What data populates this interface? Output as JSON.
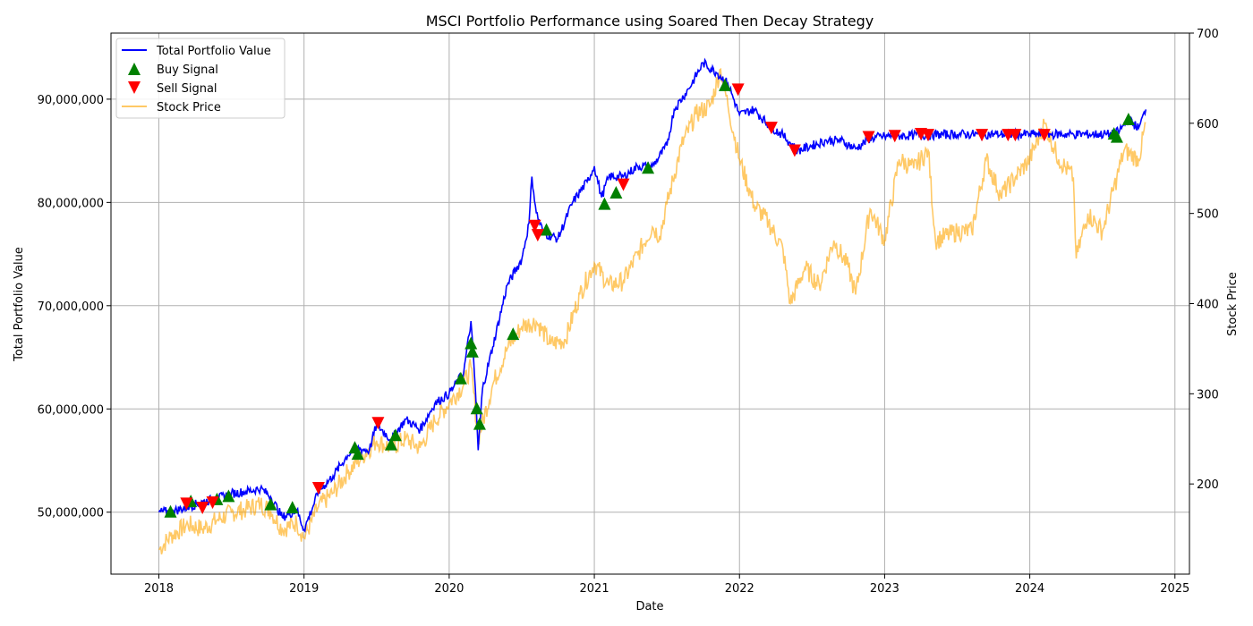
{
  "chart_data": {
    "type": "line",
    "title": "MSCI Portfolio Performance using Soared Then Decay Strategy",
    "xlabel": "Date",
    "ylabel": "Total Portfolio Value",
    "ylabel_right": "Stock Price",
    "grid": true,
    "legend_position": "top-left",
    "x_ticks": [
      "2018",
      "2019",
      "2020",
      "2021",
      "2022",
      "2023",
      "2024",
      "2025"
    ],
    "y_ticks_left": [
      "50,000,000",
      "60,000,000",
      "70,000,000",
      "80,000,000",
      "90,000,000"
    ],
    "y_ticks_right": [
      "200",
      "300",
      "400",
      "500",
      "600",
      "700"
    ],
    "xlim": [
      2017.67,
      2025.1
    ],
    "ylim_left": [
      44000000,
      96400000
    ],
    "ylim_right": [
      100,
      700
    ],
    "colors": {
      "portfolio": "#0000ff",
      "buy": "#008000",
      "sell": "#ff0000",
      "stock": "#ffa500",
      "grid": "#b0b0b0"
    },
    "series": [
      {
        "name": "Total Portfolio Value",
        "axis": "left",
        "points": [
          [
            2018.0,
            50000000
          ],
          [
            2018.1,
            50100000
          ],
          [
            2018.2,
            50500000
          ],
          [
            2018.3,
            51000000
          ],
          [
            2018.4,
            51300000
          ],
          [
            2018.5,
            51800000
          ],
          [
            2018.6,
            52000000
          ],
          [
            2018.7,
            52300000
          ],
          [
            2018.77,
            51500000
          ],
          [
            2018.85,
            49500000
          ],
          [
            2018.95,
            50200000
          ],
          [
            2019.0,
            48300000
          ],
          [
            2019.1,
            52000000
          ],
          [
            2019.2,
            53500000
          ],
          [
            2019.3,
            55500000
          ],
          [
            2019.35,
            56200000
          ],
          [
            2019.45,
            56000000
          ],
          [
            2019.5,
            58500000
          ],
          [
            2019.6,
            57000000
          ],
          [
            2019.7,
            59000000
          ],
          [
            2019.8,
            58000000
          ],
          [
            2019.9,
            60500000
          ],
          [
            2020.0,
            61500000
          ],
          [
            2020.1,
            63500000
          ],
          [
            2020.15,
            68500000
          ],
          [
            2020.18,
            62000000
          ],
          [
            2020.2,
            56000000
          ],
          [
            2020.23,
            62000000
          ],
          [
            2020.3,
            66000000
          ],
          [
            2020.4,
            72000000
          ],
          [
            2020.5,
            74500000
          ],
          [
            2020.55,
            78000000
          ],
          [
            2020.57,
            82500000
          ],
          [
            2020.6,
            79000000
          ],
          [
            2020.65,
            77000000
          ],
          [
            2020.75,
            76500000
          ],
          [
            2020.85,
            80000000
          ],
          [
            2020.95,
            82000000
          ],
          [
            2021.0,
            83500000
          ],
          [
            2021.05,
            80500000
          ],
          [
            2021.1,
            82500000
          ],
          [
            2021.2,
            82500000
          ],
          [
            2021.3,
            83500000
          ],
          [
            2021.4,
            83500000
          ],
          [
            2021.5,
            85500000
          ],
          [
            2021.55,
            89000000
          ],
          [
            2021.65,
            91000000
          ],
          [
            2021.75,
            93500000
          ],
          [
            2021.85,
            92500000
          ],
          [
            2021.92,
            91500000
          ],
          [
            2022.0,
            88500000
          ],
          [
            2022.1,
            89000000
          ],
          [
            2022.2,
            87500000
          ],
          [
            2022.3,
            86500000
          ],
          [
            2022.4,
            85000000
          ],
          [
            2022.5,
            85500000
          ],
          [
            2022.6,
            86000000
          ],
          [
            2022.7,
            86000000
          ],
          [
            2022.8,
            85200000
          ],
          [
            2022.9,
            86200000
          ],
          [
            2023.0,
            86400000
          ],
          [
            2023.2,
            86500000
          ],
          [
            2023.5,
            86600000
          ],
          [
            2023.8,
            86600000
          ],
          [
            2024.0,
            86600000
          ],
          [
            2024.3,
            86600000
          ],
          [
            2024.58,
            86600000
          ],
          [
            2024.62,
            87000000
          ],
          [
            2024.68,
            88000000
          ],
          [
            2024.75,
            87200000
          ],
          [
            2024.8,
            89000000
          ]
        ]
      },
      {
        "name": "Stock Price",
        "axis": "right",
        "points": [
          [
            2018.0,
            127
          ],
          [
            2018.08,
            142
          ],
          [
            2018.2,
            155
          ],
          [
            2018.3,
            150
          ],
          [
            2018.4,
            160
          ],
          [
            2018.5,
            168
          ],
          [
            2018.6,
            172
          ],
          [
            2018.7,
            178
          ],
          [
            2018.77,
            170
          ],
          [
            2018.85,
            150
          ],
          [
            2018.95,
            157
          ],
          [
            2019.0,
            140
          ],
          [
            2019.1,
            175
          ],
          [
            2019.2,
            190
          ],
          [
            2019.3,
            213
          ],
          [
            2019.4,
            230
          ],
          [
            2019.5,
            248
          ],
          [
            2019.6,
            240
          ],
          [
            2019.7,
            250
          ],
          [
            2019.8,
            240
          ],
          [
            2019.9,
            270
          ],
          [
            2020.0,
            290
          ],
          [
            2020.1,
            310
          ],
          [
            2020.15,
            330
          ],
          [
            2020.2,
            250
          ],
          [
            2020.3,
            310
          ],
          [
            2020.4,
            350
          ],
          [
            2020.5,
            375
          ],
          [
            2020.6,
            380
          ],
          [
            2020.7,
            355
          ],
          [
            2020.8,
            360
          ],
          [
            2020.9,
            410
          ],
          [
            2021.0,
            445
          ],
          [
            2021.1,
            420
          ],
          [
            2021.2,
            425
          ],
          [
            2021.3,
            455
          ],
          [
            2021.4,
            485
          ],
          [
            2021.45,
            475
          ],
          [
            2021.5,
            510
          ],
          [
            2021.6,
            575
          ],
          [
            2021.7,
            610
          ],
          [
            2021.8,
            620
          ],
          [
            2021.87,
            660
          ],
          [
            2021.92,
            620
          ],
          [
            2022.0,
            560
          ],
          [
            2022.1,
            510
          ],
          [
            2022.2,
            490
          ],
          [
            2022.3,
            460
          ],
          [
            2022.35,
            400
          ],
          [
            2022.45,
            440
          ],
          [
            2022.55,
            420
          ],
          [
            2022.65,
            470
          ],
          [
            2022.75,
            440
          ],
          [
            2022.8,
            410
          ],
          [
            2022.9,
            505
          ],
          [
            2023.0,
            470
          ],
          [
            2023.1,
            560
          ],
          [
            2023.2,
            550
          ],
          [
            2023.3,
            570
          ],
          [
            2023.35,
            470
          ],
          [
            2023.5,
            480
          ],
          [
            2023.6,
            480
          ],
          [
            2023.7,
            560
          ],
          [
            2023.8,
            520
          ],
          [
            2023.9,
            540
          ],
          [
            2024.0,
            560
          ],
          [
            2024.1,
            600
          ],
          [
            2024.2,
            560
          ],
          [
            2024.3,
            540
          ],
          [
            2024.32,
            450
          ],
          [
            2024.4,
            500
          ],
          [
            2024.5,
            480
          ],
          [
            2024.6,
            540
          ],
          [
            2024.65,
            570
          ],
          [
            2024.75,
            560
          ],
          [
            2024.8,
            600
          ]
        ]
      },
      {
        "name": "Buy Signal",
        "axis": "left",
        "marker": "triangle-up",
        "points": [
          [
            2018.08,
            50000000
          ],
          [
            2018.22,
            51000000
          ],
          [
            2018.4,
            51200000
          ],
          [
            2018.48,
            51500000
          ],
          [
            2018.77,
            50700000
          ],
          [
            2018.92,
            50400000
          ],
          [
            2019.35,
            56200000
          ],
          [
            2019.37,
            55600000
          ],
          [
            2019.6,
            56500000
          ],
          [
            2019.63,
            57400000
          ],
          [
            2020.08,
            62900000
          ],
          [
            2020.15,
            66300000
          ],
          [
            2020.16,
            65500000
          ],
          [
            2020.19,
            60000000
          ],
          [
            2020.21,
            58500000
          ],
          [
            2020.44,
            67200000
          ],
          [
            2020.67,
            77300000
          ],
          [
            2021.07,
            79800000
          ],
          [
            2021.15,
            80900000
          ],
          [
            2021.37,
            83300000
          ],
          [
            2021.9,
            91300000
          ],
          [
            2024.58,
            86600000
          ],
          [
            2024.6,
            86300000
          ],
          [
            2024.68,
            88000000
          ]
        ]
      },
      {
        "name": "Sell Signal",
        "axis": "left",
        "marker": "triangle-down",
        "points": [
          [
            2018.19,
            50900000
          ],
          [
            2018.3,
            50500000
          ],
          [
            2018.37,
            51000000
          ],
          [
            2019.1,
            52400000
          ],
          [
            2019.51,
            58700000
          ],
          [
            2020.59,
            77800000
          ],
          [
            2020.61,
            76900000
          ],
          [
            2021.2,
            81800000
          ],
          [
            2021.99,
            91000000
          ],
          [
            2022.22,
            87300000
          ],
          [
            2022.38,
            85100000
          ],
          [
            2022.89,
            86400000
          ],
          [
            2023.07,
            86500000
          ],
          [
            2023.25,
            86700000
          ],
          [
            2023.3,
            86600000
          ],
          [
            2023.67,
            86600000
          ],
          [
            2023.85,
            86600000
          ],
          [
            2023.9,
            86600000
          ],
          [
            2024.1,
            86600000
          ]
        ]
      }
    ]
  }
}
